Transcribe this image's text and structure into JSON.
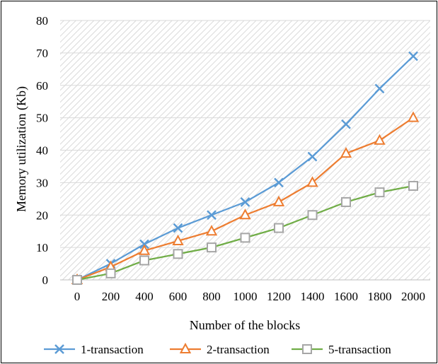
{
  "chart_data": {
    "type": "line",
    "title": "",
    "xlabel": "Number of the blocks",
    "ylabel": "Memory utilization (Kb)",
    "x": [
      0,
      200,
      400,
      600,
      800,
      1000,
      1200,
      1400,
      1600,
      1800,
      2000
    ],
    "x_tick_labels": [
      "0",
      "200",
      "400",
      "600",
      "800",
      "1000",
      "1200",
      "1400",
      "1600",
      "1800",
      "2000"
    ],
    "ylim": [
      0,
      80
    ],
    "y_ticks": [
      0,
      10,
      20,
      30,
      40,
      50,
      60,
      70,
      80
    ],
    "y_tick_labels": [
      "0",
      "10",
      "20",
      "30",
      "40",
      "50",
      "60",
      "70",
      "80"
    ],
    "grid": true,
    "legend_position": "bottom",
    "series": [
      {
        "name": "1-transaction",
        "color": "#5b9bd5",
        "marker": "x",
        "values": [
          0,
          5,
          11,
          16,
          20,
          24,
          30,
          38,
          48,
          59,
          69
        ]
      },
      {
        "name": "2-transaction",
        "color": "#ed7d31",
        "marker": "triangle",
        "values": [
          0,
          4,
          9,
          12,
          15,
          20,
          24,
          30,
          39,
          43,
          50
        ]
      },
      {
        "name": "5-transaction",
        "color": "#70ad47",
        "marker": "square",
        "values": [
          0,
          2,
          6,
          8,
          10,
          13,
          16,
          20,
          24,
          27,
          29
        ]
      }
    ]
  }
}
